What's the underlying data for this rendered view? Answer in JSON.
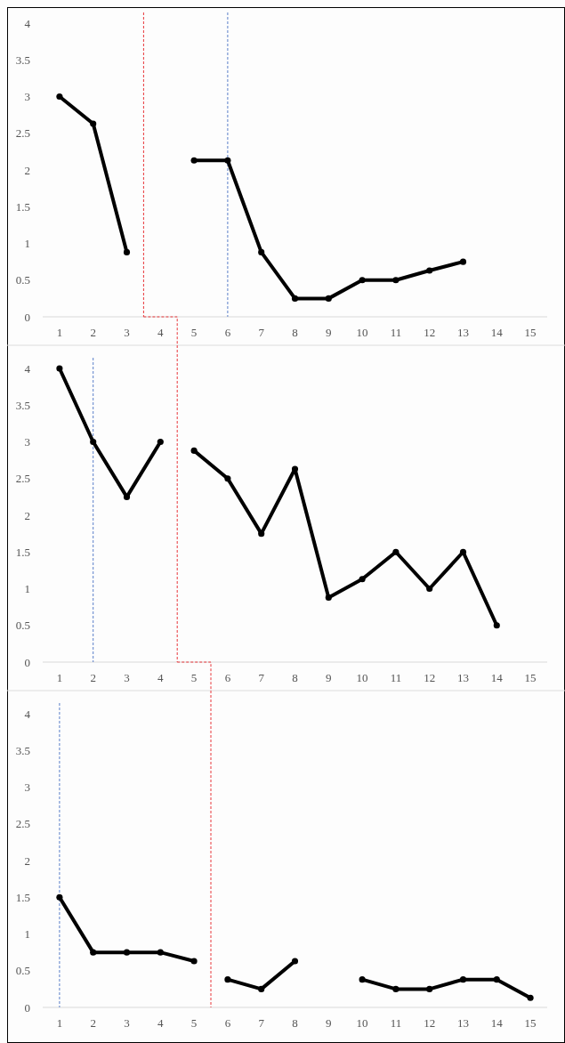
{
  "chart_data": [
    {
      "type": "line",
      "xlim": [
        0.5,
        15.5
      ],
      "xticks": [
        1,
        2,
        3,
        4,
        5,
        6,
        7,
        8,
        9,
        10,
        11,
        12,
        13,
        14,
        15
      ],
      "ylim": [
        0,
        4
      ],
      "yticks": [
        0,
        0.5,
        1,
        1.5,
        2,
        2.5,
        3,
        3.5,
        4
      ],
      "grid": false,
      "marker": "circle",
      "line_style": "solid",
      "series": [
        {
          "color": "#000000",
          "x": [
            1,
            2,
            3
          ],
          "values": [
            3.0,
            2.63,
            0.88
          ]
        },
        {
          "color": "#000000",
          "x": [
            5,
            6,
            7,
            8,
            9,
            10,
            11,
            12,
            13
          ],
          "values": [
            2.13,
            2.13,
            0.88,
            0.25,
            0.25,
            0.5,
            0.5,
            0.63,
            0.75
          ]
        }
      ],
      "ref_lines": [
        {
          "axis": "x",
          "value": 3.5,
          "color": "#e8363a",
          "line_style": "dashed"
        },
        {
          "axis": "x",
          "value": 6,
          "color": "#5b7fc9",
          "line_style": "dashed"
        }
      ]
    },
    {
      "type": "line",
      "xlim": [
        0.5,
        15.5
      ],
      "xticks": [
        1,
        2,
        3,
        4,
        5,
        6,
        7,
        8,
        9,
        10,
        11,
        12,
        13,
        14,
        15
      ],
      "ylim": [
        0,
        4
      ],
      "yticks": [
        0,
        0.5,
        1,
        1.5,
        2,
        2.5,
        3,
        3.5,
        4
      ],
      "grid": false,
      "marker": "circle",
      "line_style": "solid",
      "series": [
        {
          "color": "#000000",
          "x": [
            1,
            2,
            3,
            4
          ],
          "values": [
            4.0,
            3.0,
            2.25,
            3.0
          ]
        },
        {
          "color": "#000000",
          "x": [
            5,
            6,
            7,
            8,
            9,
            10,
            11,
            12,
            13,
            14
          ],
          "values": [
            2.88,
            2.5,
            1.75,
            2.63,
            0.88,
            1.13,
            1.5,
            1.0,
            1.5,
            0.5
          ]
        }
      ],
      "ref_lines": [
        {
          "axis": "x",
          "value": 4.5,
          "color": "#e8363a",
          "line_style": "dashed"
        },
        {
          "axis": "x",
          "value": 2,
          "color": "#5b7fc9",
          "line_style": "dashed"
        }
      ]
    },
    {
      "type": "line",
      "xlim": [
        0.5,
        15.5
      ],
      "xticks": [
        1,
        2,
        3,
        4,
        5,
        6,
        7,
        8,
        9,
        10,
        11,
        12,
        13,
        14,
        15
      ],
      "ylim": [
        0,
        4
      ],
      "yticks": [
        0,
        0.5,
        1,
        1.5,
        2,
        2.5,
        3,
        3.5,
        4
      ],
      "grid": false,
      "marker": "circle",
      "line_style": "solid",
      "series": [
        {
          "color": "#000000",
          "x": [
            1,
            2,
            3,
            4,
            5
          ],
          "values": [
            1.5,
            0.75,
            0.75,
            0.75,
            0.63
          ]
        },
        {
          "color": "#000000",
          "x": [
            6,
            7,
            8,
            9,
            10,
            11,
            12,
            13,
            14,
            15
          ],
          "values": [
            0.38,
            0.25,
            0.63,
            null,
            0.38,
            0.25,
            0.25,
            0.38,
            0.38,
            0.13
          ]
        }
      ],
      "ref_lines": [
        {
          "axis": "x",
          "value": 5.5,
          "color": "#e8363a",
          "line_style": "dashed"
        },
        {
          "axis": "x",
          "value": 1,
          "color": "#5b7fc9",
          "line_style": "dashed"
        }
      ]
    }
  ]
}
